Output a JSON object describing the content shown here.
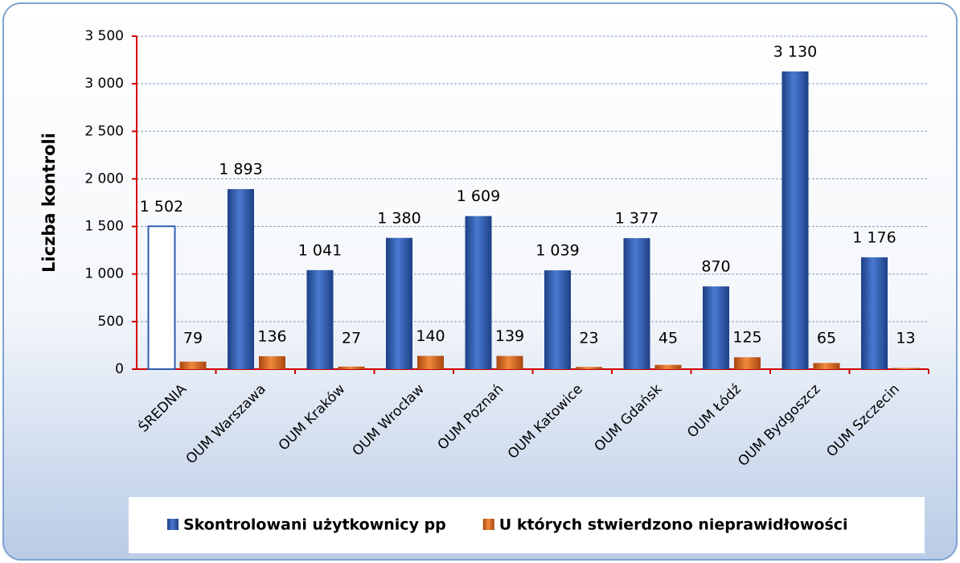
{
  "chart_data": {
    "type": "bar",
    "y_label": "Liczba kontroli",
    "categories": [
      "ŚREDNIA",
      "OUM Warszawa",
      "OUM Kraków",
      "OUM Wrocław",
      "OUM Poznań",
      "OUM Katowice",
      "OUM Gdańsk",
      "OUM Łódź",
      "OUM Bydgoszcz",
      "OUM Szczecin"
    ],
    "series": [
      {
        "name": "Skontrolowani użytkownicy pp",
        "color": "#2f5bb0",
        "colors": [
          "#ffffff",
          "#2f5bb0",
          "#2f5bb0",
          "#2f5bb0",
          "#2f5bb0",
          "#2f5bb0",
          "#2f5bb0",
          "#2f5bb0",
          "#2f5bb0",
          "#2f5bb0"
        ],
        "values": [
          1502,
          1893,
          1041,
          1380,
          1609,
          1039,
          1377,
          870,
          3130,
          1176
        ],
        "value_labels": [
          "1 502",
          "1 893",
          "1 041",
          "1 380",
          "1 609",
          "1 039",
          "1 377",
          "870",
          "3 130",
          "1 176"
        ]
      },
      {
        "name": "U których stwierdzono nieprawidłowości",
        "color": "#d9661f",
        "values": [
          79,
          136,
          27,
          140,
          139,
          23,
          45,
          125,
          65,
          13
        ]
      }
    ],
    "ylim": [
      0,
      3500
    ],
    "yticks": [
      0,
      500,
      {
        "value": 1000,
        "label": "1 000"
      },
      {
        "value": 1500,
        "label": "1 500"
      },
      {
        "value": 2000,
        "label": "2 000"
      },
      {
        "value": 2500,
        "label": "2 500"
      },
      {
        "value": 3000,
        "label": "3 000"
      },
      {
        "value": 3500,
        "label": "3 500"
      }
    ],
    "grid": true
  }
}
